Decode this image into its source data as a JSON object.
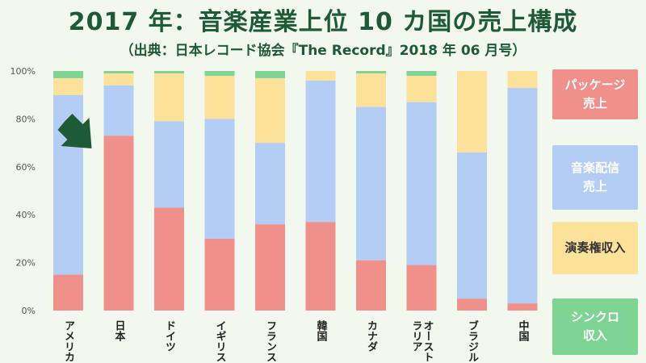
{
  "header": {
    "title": "2017 年：音楽産業上位 10 カ国の売上構成",
    "subtitle": "（出典：日本レコード協会『The Record』2018 年 06 月号）"
  },
  "legend": [
    {
      "label": "パッケージ\n売上",
      "color": "#f0908a"
    },
    {
      "label": "音楽配信\n売上",
      "color": "#b3cdf5"
    },
    {
      "label": "演奏権収入",
      "color": "#fbe199"
    },
    {
      "label": "シンクロ\n収入",
      "color": "#7dd493"
    }
  ],
  "chart_data": {
    "type": "bar",
    "stacked": true,
    "categories": [
      "アメリカ",
      "日本",
      "ドイツ",
      "イギリス",
      "フランス",
      "韓国",
      "カナダ",
      "オーストラリア",
      "ブラジル",
      "中国"
    ],
    "category_label_lines": [
      [
        "アメリカ"
      ],
      [
        "日本"
      ],
      [
        "ドイツ"
      ],
      [
        "イギリス"
      ],
      [
        "フランス"
      ],
      [
        "韓国"
      ],
      [
        "カナダ"
      ],
      [
        "オースト",
        "ラリア"
      ],
      [
        "ブラジル"
      ],
      [
        "中国"
      ]
    ],
    "series": [
      {
        "name": "パッケージ売上",
        "values": [
          15,
          73,
          43,
          30,
          36,
          37,
          21,
          19,
          5,
          3
        ]
      },
      {
        "name": "音楽配信売上",
        "values": [
          75,
          21,
          36,
          50,
          34,
          59,
          64,
          68,
          61,
          90
        ]
      },
      {
        "name": "演奏権収入",
        "values": [
          7,
          5,
          20,
          18,
          27,
          4,
          14,
          11,
          34,
          7
        ]
      },
      {
        "name": "シンクロ収入",
        "values": [
          3,
          1,
          1,
          2,
          3,
          0,
          1,
          2,
          0,
          0
        ]
      }
    ],
    "colors": [
      "#f0908a",
      "#b3cdf5",
      "#fbe199",
      "#7dd493"
    ],
    "yticks": [
      "0%",
      "20%",
      "40%",
      "60%",
      "80%",
      "100%"
    ],
    "ylim": [
      0,
      100
    ],
    "grid": false,
    "legend_position": "right",
    "annotation": {
      "type": "arrow",
      "target": "日本",
      "color": "#1f5a37"
    }
  }
}
